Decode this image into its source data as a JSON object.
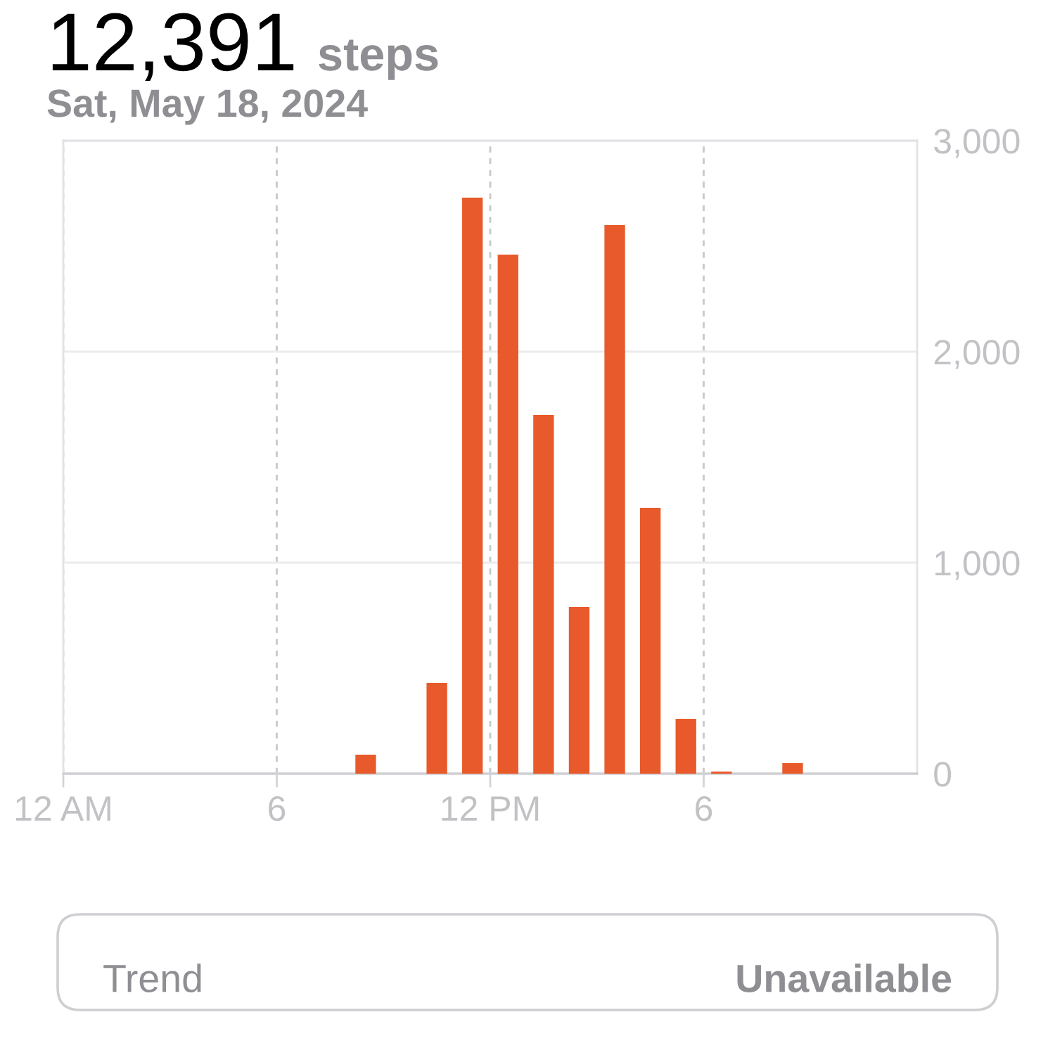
{
  "chart_data": {
    "type": "bar",
    "title": "12,391",
    "subtitle": "Sat, May 18, 2024",
    "annotations": [
      "steps",
      "Trend",
      "Unavailable"
    ],
    "x": [
      "2024-05-18T08:30",
      "2024-05-18T10:30",
      "2024-05-18T11:30",
      "2024-05-18T12:30",
      "2024-05-18T13:30",
      "2024-05-18T14:30",
      "2024-05-18T15:30",
      "2024-05-18T16:30",
      "2024-05-18T17:30",
      "2024-05-18T18:30",
      "2024-05-18T20:30"
    ],
    "values": [
      90,
      430,
      2730,
      2460,
      1700,
      790,
      2600,
      1260,
      260,
      10,
      50
    ],
    "color": "#e85a2b",
    "xlim": [
      "2024-05-18T00:00",
      "2024-05-19T00:00"
    ],
    "xticks": [
      {
        "value": "2024-05-18T00:00",
        "label": "12 AM"
      },
      {
        "value": "2024-05-18T06:00",
        "label": "6"
      },
      {
        "value": "2024-05-18T12:00",
        "label": "12 PM"
      },
      {
        "value": "2024-05-18T18:00",
        "label": "6"
      }
    ],
    "ylim": [
      0,
      3000
    ],
    "yticks": [
      0,
      {
        "value": 1000,
        "label": "1,000"
      },
      {
        "value": 2000,
        "label": "2,000"
      },
      {
        "value": 3000,
        "label": "3,000"
      }
    ],
    "grid": true
  }
}
